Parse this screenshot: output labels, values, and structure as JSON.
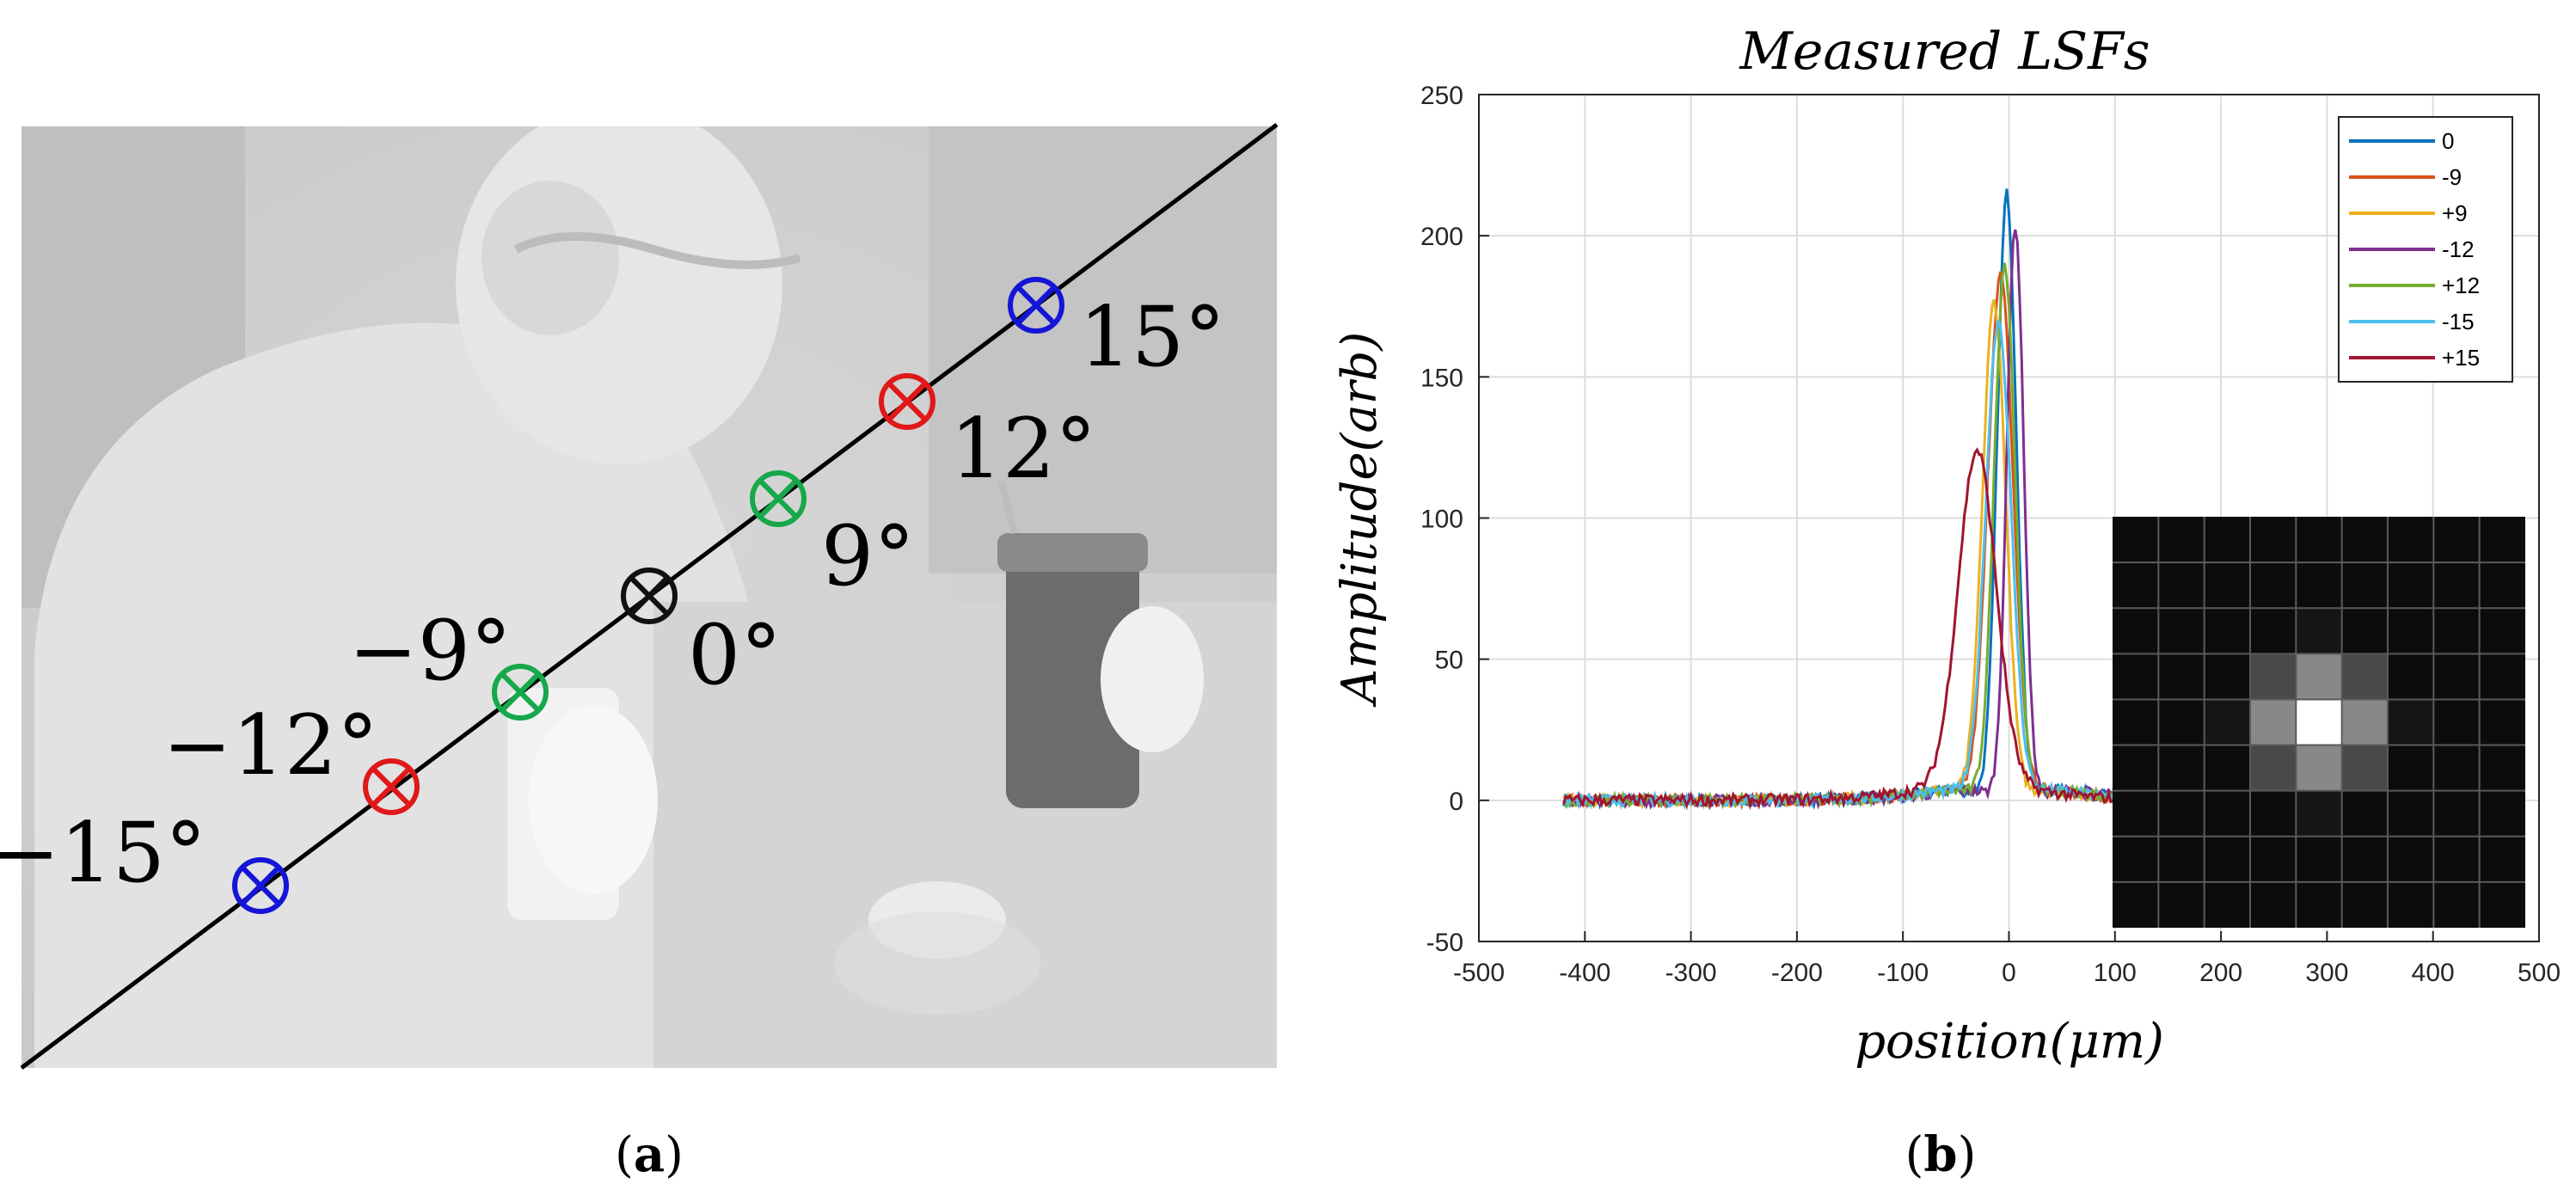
{
  "panels": {
    "a": {
      "caption_letter": "a",
      "markers": [
        {
          "label": "−15°",
          "color": "#1515d8"
        },
        {
          "label": "−12°",
          "color": "#e01818"
        },
        {
          "label": "−9°",
          "color": "#16a84a"
        },
        {
          "label": "0°",
          "color": "#111111"
        },
        {
          "label": "9°",
          "color": "#16a84a"
        },
        {
          "label": "12°",
          "color": "#e01818"
        },
        {
          "label": "15°",
          "color": "#1515d8"
        }
      ]
    },
    "b": {
      "caption_letter": "b"
    }
  },
  "chart_data": {
    "type": "line",
    "title": "Measured LSFs",
    "xlabel": "position(μm)",
    "ylabel": "Amplitude(arb)",
    "xlim": [
      -500,
      500
    ],
    "ylim": [
      -50,
      250
    ],
    "xticks": [
      -500,
      -400,
      -300,
      -200,
      -100,
      0,
      100,
      200,
      300,
      400,
      500
    ],
    "yticks": [
      -50,
      0,
      50,
      100,
      150,
      200,
      250
    ],
    "grid": true,
    "legend_position": "top-right",
    "series": [
      {
        "name": "0",
        "color": "#0072bd",
        "peak_x": -2,
        "peak_y": 215,
        "sigma": 9
      },
      {
        "name": "-9",
        "color": "#d95319",
        "peak_x": -8,
        "peak_y": 186,
        "sigma": 12
      },
      {
        "name": "+9",
        "color": "#edb120",
        "peak_x": -14,
        "peak_y": 177,
        "sigma": 11
      },
      {
        "name": "-12",
        "color": "#7e2f8e",
        "peak_x": 6,
        "peak_y": 204,
        "sigma": 8
      },
      {
        "name": "+12",
        "color": "#77ac30",
        "peak_x": -4,
        "peak_y": 190,
        "sigma": 10
      },
      {
        "name": "-15",
        "color": "#4dbeee",
        "peak_x": -10,
        "peak_y": 170,
        "sigma": 12
      },
      {
        "name": "+15",
        "color": "#a2142f",
        "peak_x": -30,
        "peak_y": 124,
        "sigma": 18
      }
    ],
    "data_x_range": [
      -420,
      120
    ]
  }
}
